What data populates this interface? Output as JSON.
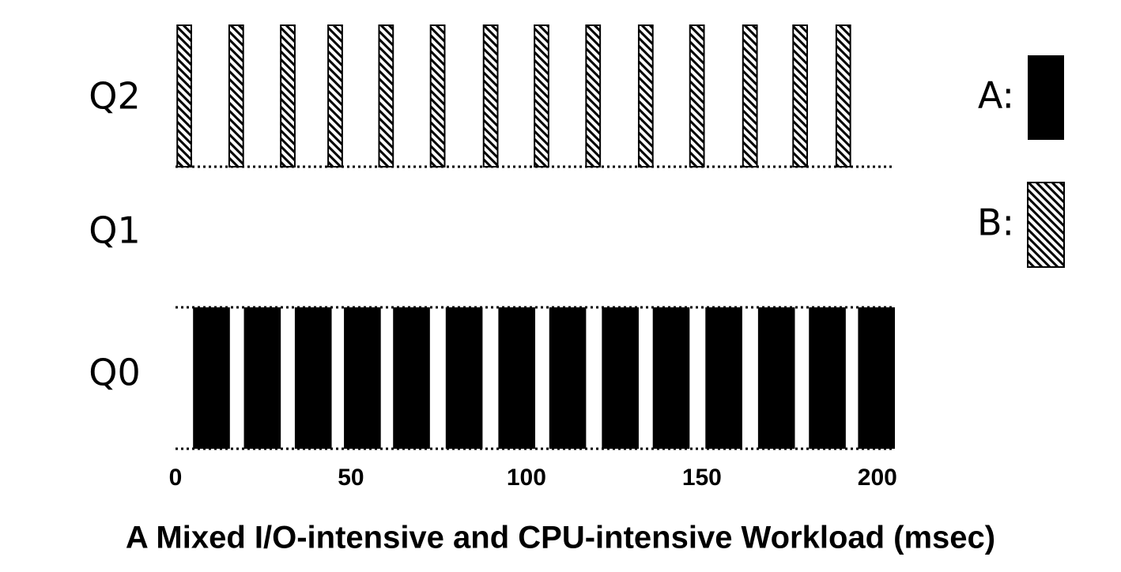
{
  "chart_data": {
    "type": "timeline",
    "title": "A Mixed I/O-intensive and CPU-intensive Workload (msec)",
    "rows": [
      "Q2",
      "Q1",
      "Q0"
    ],
    "series": [
      {
        "name": "A:",
        "color": "#000000",
        "pattern": "solid",
        "row": 2,
        "starts": [
          5,
          19.5,
          34,
          48,
          62,
          77,
          92,
          106.5,
          121.5,
          136,
          151,
          166,
          180.5,
          194.5
        ],
        "durations": [
          10.5,
          10.5,
          10.5,
          10.5,
          10.5,
          10.5,
          10.5,
          10.5,
          10.5,
          10.5,
          10.5,
          10.5,
          10.5,
          10.5
        ]
      },
      {
        "name": "B:",
        "color": "#000000",
        "pattern": "hatch",
        "row": 0,
        "starts": [
          0.5,
          15.3,
          30,
          43.5,
          58,
          72.7,
          87.8,
          102.3,
          117,
          132,
          146.6,
          161.7,
          176,
          188.3
        ],
        "durations": [
          4,
          4,
          4,
          4,
          4,
          4,
          4,
          4,
          4,
          4,
          4,
          4,
          4,
          4
        ]
      }
    ],
    "xlim": [
      0,
      205
    ],
    "xticks": [
      0,
      50,
      100,
      150,
      200
    ]
  }
}
